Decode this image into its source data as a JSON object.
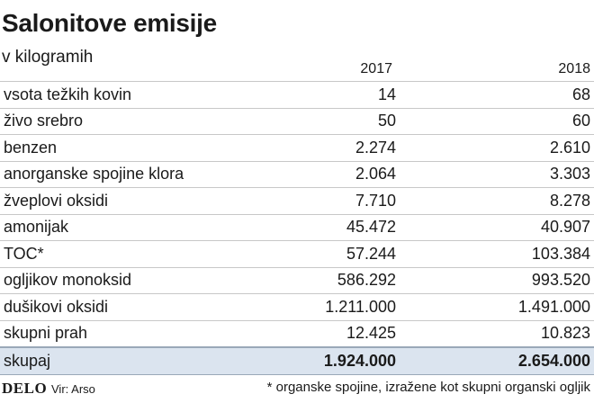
{
  "header": {
    "title": "Salonitove emisije",
    "subtitle": "v kilogramih"
  },
  "chart_data": {
    "type": "table",
    "title": "Salonitove emisije",
    "subtitle": "v kilogramih",
    "columns": [
      "2017",
      "2018"
    ],
    "rows": [
      {
        "label": "vsota težkih kovin",
        "v2017": "14",
        "v2018": "68"
      },
      {
        "label": "živo srebro",
        "v2017": "50",
        "v2018": "60"
      },
      {
        "label": "benzen",
        "v2017": "2.274",
        "v2018": "2.610"
      },
      {
        "label": "anorganske spojine klora",
        "v2017": "2.064",
        "v2018": "3.303"
      },
      {
        "label": "žveplovi oksidi",
        "v2017": "7.710",
        "v2018": "8.278"
      },
      {
        "label": "amonijak",
        "v2017": "45.472",
        "v2018": "40.907"
      },
      {
        "label": "TOC*",
        "v2017": "57.244",
        "v2018": "103.384"
      },
      {
        "label": "ogljikov monoksid",
        "v2017": "586.292",
        "v2018": "993.520"
      },
      {
        "label": "dušikovi oksidi",
        "v2017": "1.211.000",
        "v2018": "1.491.000"
      },
      {
        "label": "skupni prah",
        "v2017": "12.425",
        "v2018": "10.823"
      }
    ],
    "total": {
      "label": "skupaj",
      "v2017": "1.924.000",
      "v2018": "2.654.000"
    }
  },
  "footer": {
    "logo": "DELO",
    "source": "Vir: Arso",
    "note": "* organske spojine, izražene kot skupni organski ogljik"
  },
  "colors": {
    "total_row_background": "#dbe4ef",
    "row_divider": "#c8c8c8"
  }
}
